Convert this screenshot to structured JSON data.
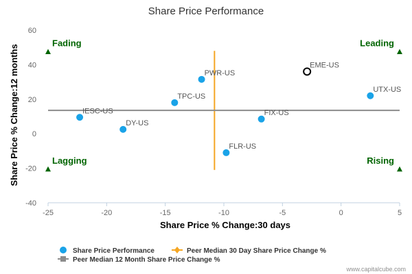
{
  "chart_data": {
    "type": "scatter",
    "title": "Share Price Performance",
    "xlabel": "Share Price % Change:30 days",
    "ylabel": "Share Price % Change:12 months",
    "xlim": [
      -25,
      5
    ],
    "ylim": [
      -40,
      60
    ],
    "x_ticks": [
      -25,
      -20,
      -15,
      -10,
      -5,
      0,
      5
    ],
    "y_ticks": [
      -40,
      -20,
      0,
      20,
      40,
      60
    ],
    "grid": false,
    "legend_position": "bottom-left",
    "series": [
      {
        "name": "Share Price Performance",
        "color": "#1aa3e8",
        "points": [
          {
            "label": "EME-US",
            "x": -2.9,
            "y": 36,
            "highlight": true
          },
          {
            "label": "UTX-US",
            "x": 2.5,
            "y": 22
          },
          {
            "label": "PWR-US",
            "x": -11.9,
            "y": 31.5
          },
          {
            "label": "TPC-US",
            "x": -14.2,
            "y": 18
          },
          {
            "label": "IESC-US",
            "x": -22.3,
            "y": 9.5
          },
          {
            "label": "DY-US",
            "x": -18.6,
            "y": 2.5
          },
          {
            "label": "FIX-US",
            "x": -6.8,
            "y": 8.5
          },
          {
            "label": "FLR-US",
            "x": -9.8,
            "y": -11
          }
        ]
      }
    ],
    "reference_lines": [
      {
        "name": "Peer Median 30 Day Share Price Change %",
        "orientation": "vertical",
        "value": -10.8,
        "from": -21,
        "to": 48,
        "color": "#f5a623"
      },
      {
        "name": "Peer Median 12 Month Share Price Change %",
        "orientation": "horizontal",
        "value": 13.5,
        "from": -25,
        "to": 5,
        "color": "#8c8c8c"
      }
    ],
    "quadrants": [
      {
        "label": "Fading",
        "position": "top-left",
        "x": -25,
        "y": 47.5
      },
      {
        "label": "Leading",
        "position": "top-right",
        "x": 5,
        "y": 47.5
      },
      {
        "label": "Lagging",
        "position": "bottom-left",
        "x": -25,
        "y": -20.5
      },
      {
        "label": "Rising",
        "position": "bottom-right",
        "x": 5,
        "y": -20.5
      }
    ],
    "quadrant_color": "#006400",
    "legend": [
      {
        "label": "Share Price Performance",
        "symbol": "circle",
        "color": "#1aa3e8"
      },
      {
        "label": "Peer Median 30 Day Share Price Change %",
        "symbol": "line-diamond",
        "color": "#f5a623"
      },
      {
        "label": "Peer Median 12 Month Share Price Change %",
        "symbol": "line-square",
        "color": "#8c8c8c"
      }
    ]
  },
  "credit": "www.capitalcube.com"
}
